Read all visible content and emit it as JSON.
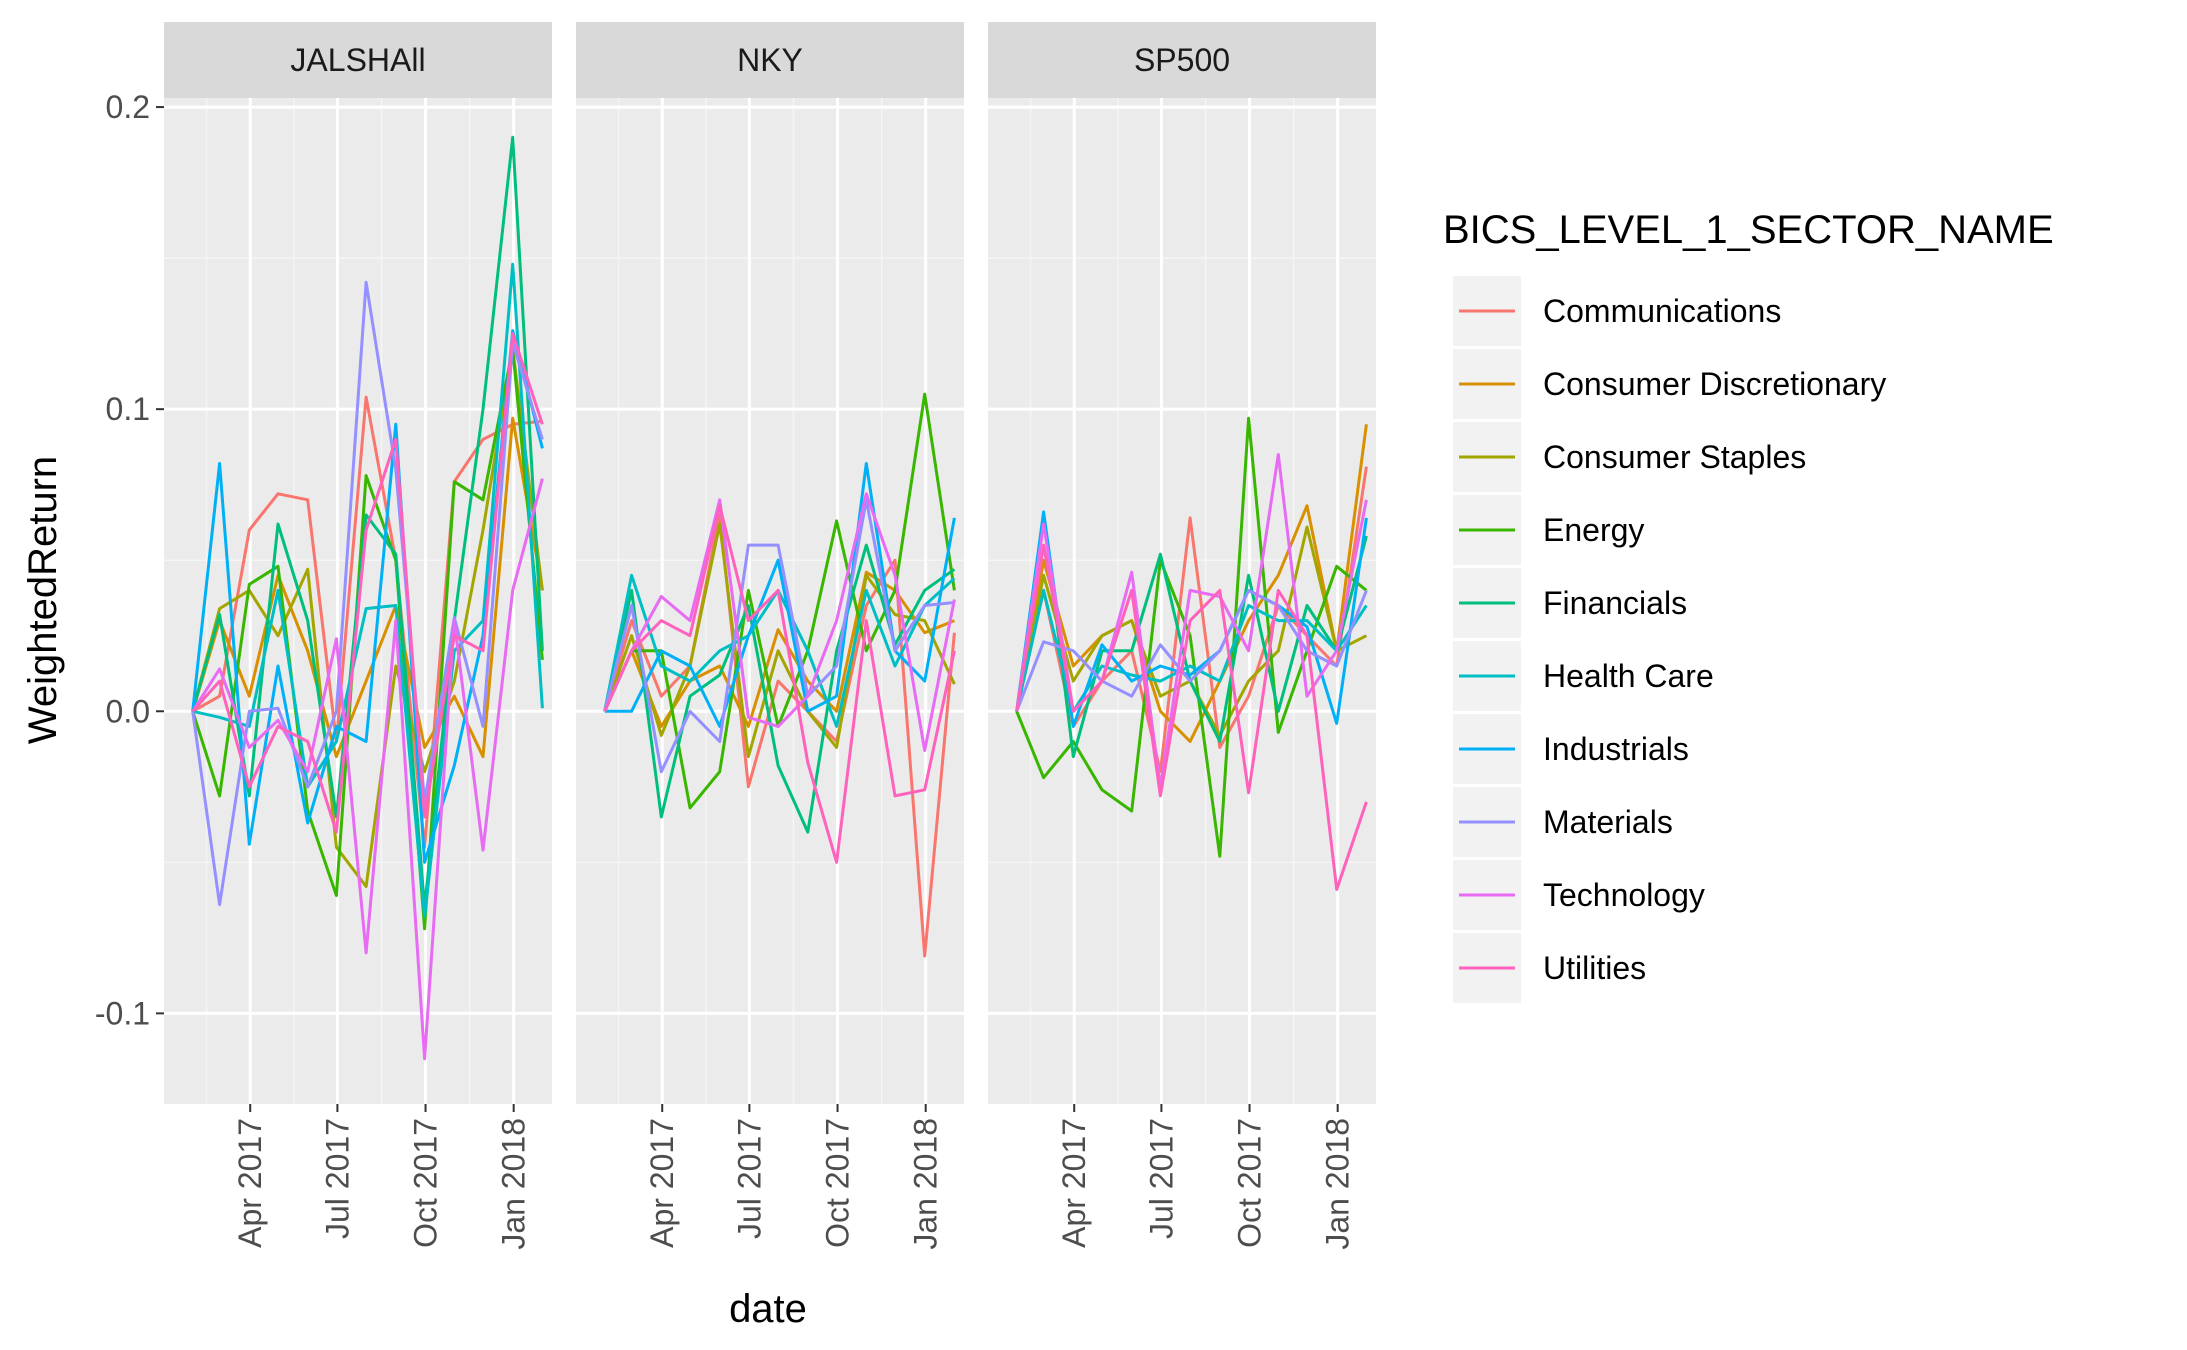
{
  "chart_data": {
    "type": "line",
    "facets": [
      "JALSHAll",
      "NKY",
      "SP500"
    ],
    "xlabel": "date",
    "ylabel": "WeightedReturn",
    "xlim": [
      "2017-01-01",
      "2018-02-10"
    ],
    "ylim": [
      -0.13,
      0.203
    ],
    "x": [
      "2017-01-31",
      "2017-02-28",
      "2017-03-31",
      "2017-04-30",
      "2017-05-31",
      "2017-06-30",
      "2017-07-31",
      "2017-08-31",
      "2017-09-30",
      "2017-10-31",
      "2017-11-30",
      "2017-12-31",
      "2018-01-31"
    ],
    "x_ticks": [
      {
        "date": "2017-04-01",
        "label": "Apr 2017"
      },
      {
        "date": "2017-07-01",
        "label": "Jul 2017"
      },
      {
        "date": "2017-10-01",
        "label": "Oct 2017"
      },
      {
        "date": "2018-01-01",
        "label": "Jan 2018"
      }
    ],
    "y_ticks": [
      {
        "value": -0.1,
        "label": "-0.1"
      },
      {
        "value": 0.0,
        "label": "0.0"
      },
      {
        "value": 0.1,
        "label": "0.1"
      },
      {
        "value": 0.2,
        "label": "0.2"
      }
    ],
    "grid": true,
    "legend": {
      "title": "BICS_LEVEL_1_SECTOR_NAME",
      "position": "right",
      "entries": [
        "Communications",
        "Consumer Discretionary",
        "Consumer Staples",
        "Energy",
        "Financials",
        "Health Care",
        "Industrials",
        "Materials",
        "Technology",
        "Utilities"
      ]
    },
    "colors": {
      "Communications": "#F8766D",
      "Consumer Discretionary": "#D89000",
      "Consumer Staples": "#A3A500",
      "Energy": "#39B600",
      "Financials": "#00BF7D",
      "Health Care": "#00BFC4",
      "Industrials": "#00B0F6",
      "Materials": "#9590FF",
      "Technology": "#E76BF3",
      "Utilities": "#FF62BC"
    },
    "series": {
      "JALSHAll": [
        {
          "name": "Communications",
          "values": [
            0,
            0.005,
            0.06,
            0.072,
            0.07,
            -0.01,
            0.104,
            0.05,
            -0.045,
            0.076,
            0.09,
            0.095,
            0.096
          ]
        },
        {
          "name": "Consumer Discretionary",
          "values": [
            0,
            0.03,
            0.005,
            0.045,
            0.02,
            -0.015,
            0.01,
            0.035,
            -0.012,
            0.005,
            -0.015,
            0.097,
            0.04
          ]
        },
        {
          "name": "Consumer Staples",
          "values": [
            0,
            0.034,
            0.04,
            0.025,
            0.047,
            -0.045,
            -0.058,
            0.015,
            -0.02,
            0.01,
            0.06,
            0.12,
            0.04
          ]
        },
        {
          "name": "Energy",
          "values": [
            0,
            -0.028,
            0.042,
            0.048,
            -0.033,
            -0.061,
            0.078,
            0.05,
            -0.072,
            0.076,
            0.07,
            0.12,
            0.017
          ]
        },
        {
          "name": "Financials",
          "values": [
            0,
            0.032,
            -0.028,
            0.062,
            0.03,
            -0.035,
            0.065,
            0.052,
            -0.065,
            0.03,
            0.1,
            0.19,
            0.02
          ]
        },
        {
          "name": "Health Care",
          "values": [
            0,
            -0.002,
            -0.005,
            0.04,
            -0.025,
            -0.01,
            0.034,
            0.035,
            -0.068,
            0.02,
            0.03,
            0.148,
            0.001
          ]
        },
        {
          "name": "Industrials",
          "values": [
            0,
            0.082,
            -0.044,
            0.015,
            -0.037,
            -0.005,
            -0.01,
            0.095,
            -0.05,
            -0.018,
            0.025,
            0.126,
            0.087
          ]
        },
        {
          "name": "Materials",
          "values": [
            0,
            -0.064,
            0.0,
            0.001,
            -0.025,
            0.0,
            0.142,
            0.08,
            -0.03,
            0.031,
            -0.005,
            0.122,
            0.09
          ]
        },
        {
          "name": "Technology",
          "values": [
            0,
            0.014,
            -0.012,
            -0.003,
            -0.02,
            0.024,
            -0.08,
            0.03,
            -0.115,
            0.03,
            -0.046,
            0.04,
            0.077
          ]
        },
        {
          "name": "Utilities",
          "values": [
            0,
            0.01,
            -0.025,
            -0.005,
            -0.01,
            -0.04,
            0.06,
            0.09,
            -0.035,
            0.025,
            0.02,
            0.125,
            0.095
          ]
        }
      ],
      "NKY": [
        {
          "name": "Communications",
          "values": [
            0,
            0.03,
            0.005,
            0.015,
            0.065,
            -0.025,
            0.01,
            0.0,
            -0.01,
            0.035,
            0.05,
            -0.081,
            0.026
          ]
        },
        {
          "name": "Consumer Discretionary",
          "values": [
            0,
            0.02,
            -0.005,
            0.01,
            0.015,
            -0.005,
            0.027,
            0.01,
            0.0,
            0.046,
            0.04,
            0.026,
            0.03
          ]
        },
        {
          "name": "Consumer Staples",
          "values": [
            0,
            0.025,
            -0.008,
            0.015,
            0.062,
            -0.015,
            0.02,
            0.0,
            -0.012,
            0.045,
            0.032,
            0.03,
            0.009
          ]
        },
        {
          "name": "Energy",
          "values": [
            0,
            0.02,
            0.02,
            -0.032,
            -0.02,
            0.04,
            -0.005,
            0.02,
            0.063,
            0.02,
            0.04,
            0.105,
            0.04
          ]
        },
        {
          "name": "Financials",
          "values": [
            0,
            0.04,
            -0.035,
            0.005,
            0.012,
            0.035,
            -0.018,
            -0.04,
            0.02,
            0.055,
            0.022,
            0.04,
            0.047
          ]
        },
        {
          "name": "Health Care",
          "values": [
            0,
            0.045,
            0.015,
            0.01,
            0.02,
            0.025,
            0.04,
            0.02,
            -0.005,
            0.04,
            0.015,
            0.035,
            0.044
          ]
        },
        {
          "name": "Industrials",
          "values": [
            0,
            0.0,
            0.02,
            0.015,
            -0.005,
            0.025,
            0.05,
            0.0,
            0.005,
            0.082,
            0.02,
            0.01,
            0.064
          ]
        },
        {
          "name": "Materials",
          "values": [
            0,
            0.035,
            -0.02,
            0.0,
            -0.01,
            0.055,
            0.055,
            0.005,
            0.015,
            0.07,
            0.02,
            0.035,
            0.036
          ]
        },
        {
          "name": "Technology",
          "values": [
            0,
            0.02,
            0.038,
            0.03,
            0.07,
            -0.002,
            -0.005,
            0.005,
            0.03,
            0.072,
            0.045,
            -0.013,
            0.037
          ]
        },
        {
          "name": "Utilities",
          "values": [
            0,
            0.02,
            0.03,
            0.025,
            0.068,
            0.03,
            0.04,
            -0.017,
            -0.05,
            0.03,
            -0.028,
            -0.026,
            0.02
          ]
        }
      ],
      "SP500": [
        {
          "name": "Communications",
          "values": [
            0,
            0.04,
            -0.005,
            0.01,
            0.02,
            -0.02,
            0.064,
            -0.012,
            0.005,
            0.035,
            0.025,
            0.015,
            0.081
          ]
        },
        {
          "name": "Consumer Discretionary",
          "values": [
            0,
            0.05,
            0.015,
            0.025,
            0.03,
            0.0,
            -0.01,
            0.01,
            0.03,
            0.045,
            0.068,
            0.02,
            0.095
          ]
        },
        {
          "name": "Consumer Staples",
          "values": [
            0,
            0.045,
            0.01,
            0.025,
            0.03,
            0.005,
            0.01,
            -0.008,
            0.01,
            0.02,
            0.061,
            0.02,
            0.025
          ]
        },
        {
          "name": "Energy",
          "values": [
            0,
            -0.022,
            -0.01,
            -0.026,
            -0.033,
            0.05,
            0.025,
            -0.048,
            0.097,
            -0.007,
            0.02,
            0.048,
            0.04
          ]
        },
        {
          "name": "Financials",
          "values": [
            0,
            0.065,
            -0.015,
            0.02,
            0.02,
            0.052,
            0.01,
            -0.01,
            0.045,
            0.0,
            0.035,
            0.02,
            0.058
          ]
        },
        {
          "name": "Health Care",
          "values": [
            0,
            0.04,
            0.0,
            0.015,
            0.012,
            0.01,
            0.015,
            0.01,
            0.035,
            0.03,
            0.03,
            0.02,
            0.035
          ]
        },
        {
          "name": "Industrials",
          "values": [
            0,
            0.066,
            -0.005,
            0.022,
            0.01,
            0.015,
            0.012,
            0.02,
            0.04,
            0.035,
            0.028,
            -0.004,
            0.064
          ]
        },
        {
          "name": "Materials",
          "values": [
            0,
            0.023,
            0.02,
            0.01,
            0.005,
            0.022,
            0.01,
            0.02,
            0.04,
            0.035,
            0.02,
            0.015,
            0.04
          ]
        },
        {
          "name": "Technology",
          "values": [
            0,
            0.062,
            0.0,
            0.01,
            0.046,
            -0.025,
            0.04,
            0.038,
            0.02,
            0.085,
            0.005,
            0.02,
            0.07
          ]
        },
        {
          "name": "Utilities",
          "values": [
            0,
            0.055,
            0.0,
            0.01,
            0.04,
            -0.028,
            0.03,
            0.04,
            -0.027,
            0.04,
            0.025,
            -0.059,
            -0.03
          ]
        }
      ]
    }
  }
}
